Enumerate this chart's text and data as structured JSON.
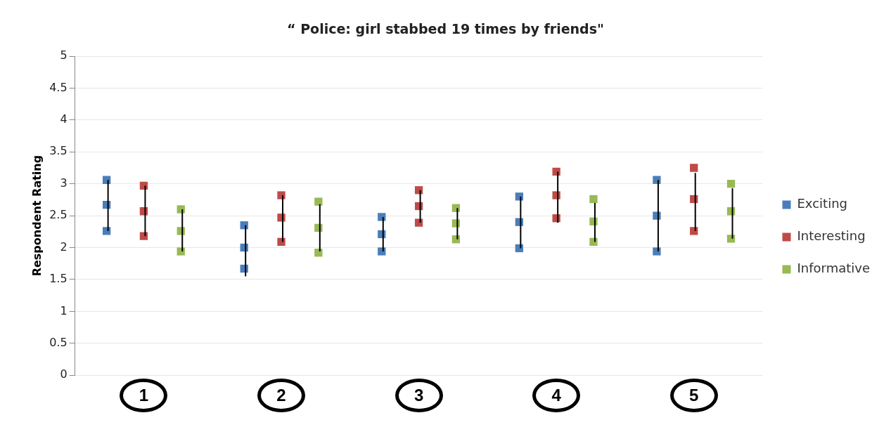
{
  "chart_data": {
    "type": "scatter",
    "title": "“ Police: girl stabbed 19 times by friends\"",
    "ylabel": "Respondent Rating",
    "categories": [
      "1",
      "2",
      "3",
      "4",
      "5"
    ],
    "series": [
      {
        "name": "Exciting",
        "color": "#4a7ebb",
        "x": [
          "1",
          "1",
          "1",
          "2",
          "2",
          "2",
          "3",
          "3",
          "3",
          "4",
          "4",
          "4",
          "5",
          "5",
          "5"
        ],
        "values": [
          3.06,
          2.67,
          2.26,
          2.35,
          2.0,
          1.67,
          2.48,
          2.21,
          1.94,
          2.8,
          2.4,
          1.99,
          3.06,
          2.5,
          1.94
        ],
        "errors": [
          null,
          [
            2.26,
            3.06
          ],
          null,
          null,
          [
            1.55,
            2.35
          ],
          null,
          null,
          [
            1.94,
            2.48
          ],
          null,
          null,
          [
            1.99,
            2.8
          ],
          null,
          null,
          [
            1.94,
            3.06
          ],
          null
        ]
      },
      {
        "name": "Interesting",
        "color": "#be4b48",
        "x": [
          "1",
          "1",
          "1",
          "2",
          "2",
          "2",
          "3",
          "3",
          "3",
          "4",
          "4",
          "4",
          "5",
          "5",
          "5"
        ],
        "values": [
          2.97,
          2.57,
          2.18,
          2.82,
          2.47,
          2.09,
          2.9,
          2.65,
          2.39,
          3.19,
          2.82,
          2.46,
          3.25,
          2.76,
          2.26
        ],
        "errors": [
          null,
          [
            2.18,
            2.97
          ],
          null,
          null,
          [
            2.09,
            2.82
          ],
          null,
          null,
          [
            2.39,
            2.9
          ],
          null,
          null,
          [
            2.39,
            3.19
          ],
          null,
          null,
          [
            2.26,
            3.17
          ],
          null
        ]
      },
      {
        "name": "Informative",
        "color": "#98b954",
        "x": [
          "1",
          "1",
          "1",
          "2",
          "2",
          "2",
          "3",
          "3",
          "3",
          "4",
          "4",
          "4",
          "5",
          "5",
          "5"
        ],
        "values": [
          2.6,
          2.26,
          1.94,
          2.72,
          2.31,
          1.92,
          2.62,
          2.38,
          2.13,
          2.76,
          2.41,
          2.09,
          3.0,
          2.57,
          2.14
        ],
        "errors": [
          null,
          [
            1.94,
            2.6
          ],
          null,
          null,
          [
            1.94,
            2.68
          ],
          null,
          null,
          [
            2.13,
            2.62
          ],
          null,
          null,
          [
            2.09,
            2.7
          ],
          null,
          null,
          [
            2.14,
            2.93
          ],
          null
        ]
      }
    ],
    "ylim": [
      0,
      5
    ],
    "yticks": [
      0,
      0.5,
      1,
      1.5,
      2,
      2.5,
      3,
      3.5,
      4,
      4.5,
      5
    ],
    "grid": "y",
    "legend": "right",
    "marker": "square"
  }
}
